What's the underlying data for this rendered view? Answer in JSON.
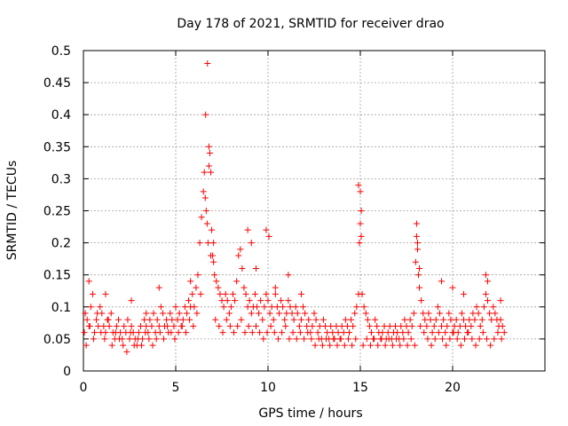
{
  "chart_data": {
    "type": "scatter",
    "title": "Day 178 of 2021, SRMTID for receiver drao",
    "xlabel": "GPS time / hours",
    "ylabel": "SRMTID / TECUs",
    "xlim": [
      0,
      25
    ],
    "ylim": [
      0,
      0.5
    ],
    "xticks": [
      0,
      5,
      10,
      15,
      20
    ],
    "xtick_labels": [
      "0",
      "5",
      "10",
      "15",
      "20"
    ],
    "yticks": [
      0,
      0.05,
      0.1,
      0.15,
      0.2,
      0.25,
      0.3,
      0.35,
      0.4,
      0.45,
      0.5
    ],
    "ytick_labels": [
      "0",
      "0.05",
      "0.1",
      "0.15",
      "0.2",
      "0.25",
      "0.3",
      "0.35",
      "0.4",
      "0.45",
      "0.5"
    ],
    "grid": true,
    "marker": "+",
    "series": [
      {
        "name": "SRMTID drao",
        "color": "#ff0000",
        "x": [
          0.05,
          0.1,
          0.2,
          0.3,
          0.4,
          0.5,
          0.6,
          0.7,
          0.8,
          0.9,
          1.0,
          1.1,
          1.2,
          1.3,
          1.4,
          1.5,
          1.6,
          1.7,
          1.8,
          1.9,
          2.0,
          2.1,
          2.2,
          2.3,
          2.4,
          2.5,
          2.6,
          2.7,
          2.8,
          2.9,
          3.0,
          3.1,
          3.2,
          3.3,
          3.4,
          3.5,
          3.6,
          3.7,
          3.8,
          3.9,
          4.0,
          4.1,
          4.2,
          4.3,
          4.4,
          4.5,
          4.6,
          4.7,
          4.8,
          4.9,
          5.0,
          5.1,
          5.2,
          5.3,
          5.4,
          5.5,
          5.6,
          5.7,
          5.8,
          5.9,
          6.0,
          6.1,
          6.2,
          6.3,
          6.4,
          6.5,
          6.55,
          6.6,
          6.65,
          6.7,
          6.75,
          6.8,
          6.85,
          6.9,
          6.95,
          7.0,
          7.05,
          7.1,
          7.2,
          7.3,
          7.4,
          7.5,
          7.6,
          7.7,
          7.8,
          7.9,
          8.0,
          8.1,
          8.2,
          8.3,
          8.4,
          8.5,
          8.6,
          8.7,
          8.8,
          8.9,
          9.0,
          9.1,
          9.2,
          9.3,
          9.4,
          9.5,
          9.6,
          9.7,
          9.8,
          9.9,
          10.0,
          10.1,
          10.2,
          10.3,
          10.4,
          10.5,
          10.6,
          10.7,
          10.8,
          10.9,
          11.0,
          11.1,
          11.2,
          11.3,
          11.4,
          11.5,
          11.6,
          11.7,
          11.8,
          11.9,
          12.0,
          12.1,
          12.2,
          12.3,
          12.4,
          12.5,
          12.6,
          12.7,
          12.8,
          12.9,
          13.0,
          13.1,
          13.2,
          13.3,
          13.4,
          13.5,
          13.6,
          13.7,
          13.8,
          13.9,
          14.0,
          14.1,
          14.2,
          14.3,
          14.4,
          14.5,
          14.6,
          14.7,
          14.8,
          14.9,
          14.95,
          15.0,
          15.05,
          15.1,
          15.2,
          15.3,
          15.4,
          15.5,
          15.6,
          15.7,
          15.8,
          15.9,
          16.0,
          16.1,
          16.2,
          16.3,
          16.4,
          16.5,
          16.6,
          16.7,
          16.8,
          16.9,
          17.0,
          17.1,
          17.2,
          17.3,
          17.4,
          17.5,
          17.6,
          17.7,
          17.8,
          17.9,
          18.0,
          18.05,
          18.1,
          18.15,
          18.2,
          18.3,
          18.4,
          18.5,
          18.6,
          18.7,
          18.8,
          18.9,
          19.0,
          19.1,
          19.2,
          19.3,
          19.4,
          19.5,
          19.6,
          19.7,
          19.8,
          19.9,
          20.0,
          20.1,
          20.2,
          20.3,
          20.4,
          20.5,
          20.6,
          20.7,
          20.8,
          20.9,
          21.0,
          21.1,
          21.2,
          21.3,
          21.4,
          21.5,
          21.6,
          21.7,
          21.8,
          21.9,
          22.0,
          22.1,
          22.2,
          22.3,
          22.4,
          22.5,
          22.6,
          22.7,
          22.8,
          0.15,
          0.35,
          0.55,
          0.75,
          0.95,
          1.15,
          1.35,
          1.55,
          1.75,
          1.95,
          2.15,
          2.35,
          2.55,
          2.75,
          2.95,
          3.15,
          3.35,
          3.55,
          3.75,
          3.95,
          4.15,
          4.35,
          4.55,
          4.75,
          4.95,
          5.15,
          5.35,
          5.55,
          5.75,
          5.95,
          6.15,
          6.35,
          7.15,
          7.35,
          7.55,
          7.75,
          7.95,
          8.15,
          8.35,
          8.55,
          8.75,
          8.95,
          9.15,
          9.35,
          9.55,
          9.75,
          9.95,
          10.15,
          10.35,
          10.55,
          10.75,
          10.95,
          11.15,
          11.35,
          11.55,
          11.75,
          11.95,
          12.15,
          12.35,
          12.55,
          12.75,
          12.95,
          13.15,
          13.35,
          13.55,
          13.75,
          13.95,
          14.15,
          14.35,
          14.55,
          14.75,
          15.15,
          15.35,
          15.55,
          15.75,
          15.95,
          16.15,
          16.35,
          16.55,
          16.75,
          16.95,
          17.15,
          17.35,
          17.55,
          17.75,
          17.95,
          18.25,
          18.45,
          18.65,
          18.85,
          19.05,
          19.25,
          19.45,
          19.65,
          19.85,
          20.05,
          20.25,
          20.45,
          20.65,
          20.85,
          21.05,
          21.25,
          21.45,
          21.65,
          21.85,
          22.05,
          22.25,
          22.45,
          22.65,
          0.3,
          1.2,
          2.6,
          3.4,
          4.1,
          5.8,
          6.62,
          6.72,
          6.8,
          6.9,
          7.05,
          8.9,
          9.1,
          9.35,
          9.9,
          10.05,
          10.4,
          11.1,
          11.8,
          14.9,
          15.0,
          15.05,
          18.05,
          18.1,
          18.2,
          19.4,
          20.0,
          20.6,
          21.8,
          21.9,
          22.6
        ],
        "y": [
          0.06,
          0.09,
          0.08,
          0.07,
          0.1,
          0.12,
          0.06,
          0.08,
          0.07,
          0.1,
          0.09,
          0.07,
          0.06,
          0.08,
          0.07,
          0.09,
          0.06,
          0.05,
          0.07,
          0.08,
          0.06,
          0.05,
          0.07,
          0.06,
          0.08,
          0.05,
          0.07,
          0.06,
          0.05,
          0.04,
          0.06,
          0.07,
          0.05,
          0.08,
          0.07,
          0.06,
          0.08,
          0.07,
          0.09,
          0.06,
          0.08,
          0.07,
          0.1,
          0.09,
          0.07,
          0.08,
          0.06,
          0.09,
          0.08,
          0.07,
          0.1,
          0.08,
          0.09,
          0.07,
          0.08,
          0.1,
          0.09,
          0.11,
          0.1,
          0.12,
          0.1,
          0.13,
          0.15,
          0.2,
          0.24,
          0.28,
          0.31,
          0.27,
          0.25,
          0.23,
          0.2,
          0.35,
          0.34,
          0.31,
          0.22,
          0.18,
          0.17,
          0.15,
          0.14,
          0.13,
          0.12,
          0.11,
          0.1,
          0.12,
          0.11,
          0.09,
          0.1,
          0.12,
          0.11,
          0.14,
          0.18,
          0.19,
          0.16,
          0.13,
          0.12,
          0.1,
          0.11,
          0.09,
          0.1,
          0.12,
          0.1,
          0.09,
          0.11,
          0.08,
          0.1,
          0.12,
          0.11,
          0.09,
          0.1,
          0.08,
          0.12,
          0.1,
          0.09,
          0.11,
          0.1,
          0.08,
          0.09,
          0.11,
          0.1,
          0.09,
          0.08,
          0.1,
          0.09,
          0.07,
          0.08,
          0.1,
          0.09,
          0.07,
          0.08,
          0.06,
          0.07,
          0.09,
          0.08,
          0.06,
          0.07,
          0.05,
          0.08,
          0.07,
          0.06,
          0.05,
          0.07,
          0.06,
          0.05,
          0.07,
          0.06,
          0.05,
          0.07,
          0.06,
          0.08,
          0.07,
          0.06,
          0.08,
          0.07,
          0.09,
          0.1,
          0.12,
          0.2,
          0.23,
          0.21,
          0.12,
          0.1,
          0.09,
          0.08,
          0.07,
          0.06,
          0.05,
          0.08,
          0.07,
          0.06,
          0.05,
          0.06,
          0.07,
          0.05,
          0.06,
          0.07,
          0.05,
          0.06,
          0.07,
          0.06,
          0.05,
          0.07,
          0.06,
          0.08,
          0.07,
          0.06,
          0.08,
          0.07,
          0.09,
          0.17,
          0.21,
          0.19,
          0.15,
          0.13,
          0.11,
          0.09,
          0.08,
          0.07,
          0.09,
          0.08,
          0.06,
          0.07,
          0.08,
          0.1,
          0.09,
          0.07,
          0.08,
          0.06,
          0.07,
          0.09,
          0.08,
          0.06,
          0.07,
          0.08,
          0.06,
          0.07,
          0.09,
          0.08,
          0.07,
          0.06,
          0.08,
          0.07,
          0.09,
          0.08,
          0.1,
          0.09,
          0.07,
          0.08,
          0.1,
          0.12,
          0.11,
          0.09,
          0.08,
          0.1,
          0.09,
          0.08,
          0.07,
          0.08,
          0.07,
          0.06,
          0.04,
          0.07,
          0.05,
          0.09,
          0.06,
          0.05,
          0.08,
          0.04,
          0.06,
          0.05,
          0.04,
          0.03,
          0.06,
          0.04,
          0.05,
          0.04,
          0.06,
          0.05,
          0.04,
          0.05,
          0.06,
          0.05,
          0.07,
          0.06,
          0.05,
          0.06,
          0.07,
          0.06,
          0.08,
          0.07,
          0.09,
          0.12,
          0.08,
          0.07,
          0.06,
          0.08,
          0.07,
          0.06,
          0.07,
          0.08,
          0.06,
          0.07,
          0.06,
          0.07,
          0.06,
          0.05,
          0.06,
          0.07,
          0.06,
          0.05,
          0.06,
          0.07,
          0.05,
          0.06,
          0.05,
          0.06,
          0.05,
          0.06,
          0.05,
          0.04,
          0.05,
          0.04,
          0.05,
          0.04,
          0.05,
          0.04,
          0.05,
          0.04,
          0.05,
          0.04,
          0.05,
          0.04,
          0.05,
          0.04,
          0.05,
          0.04,
          0.05,
          0.04,
          0.05,
          0.04,
          0.05,
          0.04,
          0.05,
          0.04,
          0.05,
          0.04,
          0.07,
          0.06,
          0.05,
          0.04,
          0.05,
          0.06,
          0.05,
          0.04,
          0.05,
          0.06,
          0.05,
          0.04,
          0.05,
          0.06,
          0.05,
          0.04,
          0.05,
          0.06,
          0.05,
          0.04,
          0.05,
          0.06,
          0.05,
          0.14,
          0.12,
          0.11,
          0.09,
          0.13,
          0.14,
          0.4,
          0.48,
          0.32,
          0.18,
          0.2,
          0.22,
          0.2,
          0.16,
          0.22,
          0.21,
          0.13,
          0.15,
          0.12,
          0.29,
          0.28,
          0.25,
          0.23,
          0.2,
          0.16,
          0.14,
          0.13,
          0.12,
          0.15,
          0.14,
          0.11
        ]
      }
    ]
  }
}
